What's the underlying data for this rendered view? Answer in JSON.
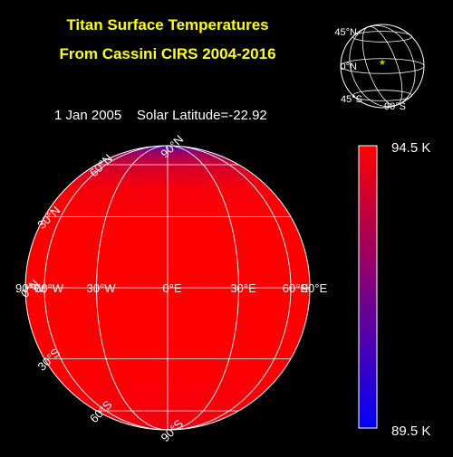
{
  "title_line1": "Titan Surface Temperatures",
  "title_line2": "From Cassini CIRS 2004-2016",
  "date": "1 Jan 2005",
  "solar_latitude_label": "Solar Latitude=-22.92",
  "colors": {
    "title": "#ffff00",
    "hot": "#ff0000",
    "cold": "#0000ff",
    "grid": "#ffffff",
    "marker": "#ffff00",
    "background": "#000000"
  },
  "chart_data": {
    "type": "heatmap",
    "projection": "orthographic",
    "center_latitude": 0,
    "center_longitude": 0,
    "colorbar": {
      "min": 89.5,
      "max": 94.5,
      "min_label": "89.5 K",
      "max_label": "94.5 K",
      "colormap": [
        "#0000ff",
        "#ff0000"
      ]
    },
    "temperature_profile": [
      {
        "lat": 90,
        "temp": 90.5
      },
      {
        "lat": 75,
        "temp": 92.3
      },
      {
        "lat": 60,
        "temp": 93.6
      },
      {
        "lat": 45,
        "temp": 94.3
      },
      {
        "lat": 30,
        "temp": 94.5
      },
      {
        "lat": 0,
        "temp": 94.5
      },
      {
        "lat": -30,
        "temp": 94.5
      },
      {
        "lat": -60,
        "temp": 94.3
      },
      {
        "lat": -90,
        "temp": 94.1
      }
    ],
    "latitude_labels": [
      {
        "lat": 90,
        "text": "90°N"
      },
      {
        "lat": 60,
        "text": "60°N"
      },
      {
        "lat": 30,
        "text": "30°N"
      },
      {
        "lat": 0,
        "text": "0°N"
      },
      {
        "lat": -30,
        "text": "30°S"
      },
      {
        "lat": -60,
        "text": "60°S"
      },
      {
        "lat": -90,
        "text": "90°S"
      }
    ],
    "longitude_labels": [
      {
        "lon": -90,
        "text": "90°W"
      },
      {
        "lon": -60,
        "text": "60°W"
      },
      {
        "lon": -30,
        "text": "30°W"
      },
      {
        "lon": 0,
        "text": "0°E"
      },
      {
        "lon": 30,
        "text": "30°E"
      },
      {
        "lon": 60,
        "text": "60°E"
      },
      {
        "lon": 90,
        "text": "90°E"
      }
    ],
    "inset": {
      "labels": [
        "45°N",
        "0°N",
        "45°S",
        "90°S"
      ],
      "subsolar_point": {
        "lat": -22.92,
        "lon": 0
      }
    }
  }
}
